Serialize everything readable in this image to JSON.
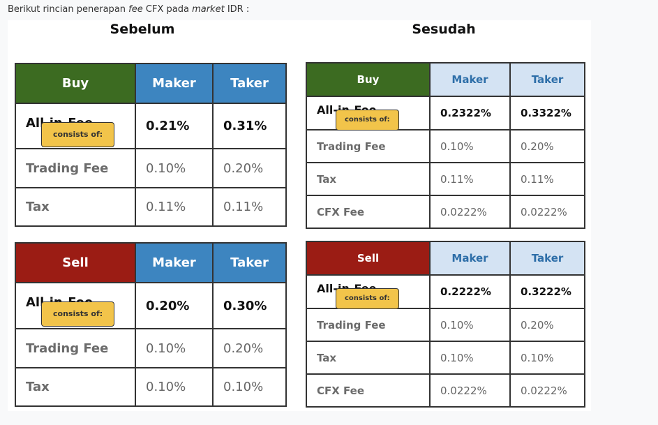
{
  "intro": {
    "text_before_fee": "Berikut rincian penerapan",
    "fee": "fee",
    "text_middle": "CFX pada",
    "market": "market",
    "text_after": "IDR :"
  },
  "before": {
    "heading": "Sebelum",
    "buy": {
      "header": [
        "Buy",
        "Maker",
        "Taker"
      ],
      "all_in_label": "All-in-Fee",
      "badge": "consists of:",
      "all_in_values": [
        "0.21%",
        "0.31%"
      ],
      "rows": [
        {
          "label": "Trading Fee",
          "maker": "0.10%",
          "taker": "0.20%"
        },
        {
          "label": "Tax",
          "maker": "0.11%",
          "taker": "0.11%"
        }
      ]
    },
    "sell": {
      "header": [
        "Sell",
        "Maker",
        "Taker"
      ],
      "all_in_label": "All-in-Fee",
      "badge": "consists of:",
      "all_in_values": [
        "0.20%",
        "0.30%"
      ],
      "rows": [
        {
          "label": "Trading Fee",
          "maker": "0.10%",
          "taker": "0.20%"
        },
        {
          "label": "Tax",
          "maker": "0.10%",
          "taker": "0.10%"
        }
      ]
    }
  },
  "after": {
    "heading": "Sesudah",
    "buy": {
      "header": [
        "Buy",
        "Maker",
        "Taker"
      ],
      "all_in_label": "All-in-Fee",
      "badge": "consists of:",
      "all_in_values": [
        "0.2322%",
        "0.3322%"
      ],
      "rows": [
        {
          "label": "Trading Fee",
          "maker": "0.10%",
          "taker": "0.20%"
        },
        {
          "label": "Tax",
          "maker": "0.11%",
          "taker": "0.11%"
        },
        {
          "label": "CFX Fee",
          "maker": "0.0222%",
          "taker": "0.0222%"
        }
      ]
    },
    "sell": {
      "header": [
        "Sell",
        "Maker",
        "Taker"
      ],
      "all_in_label": "All-in-Fee",
      "badge": "consists of:",
      "all_in_values": [
        "0.2222%",
        "0.3222%"
      ],
      "rows": [
        {
          "label": "Trading Fee",
          "maker": "0.10%",
          "taker": "0.20%"
        },
        {
          "label": "Tax",
          "maker": "0.10%",
          "taker": "0.10%"
        },
        {
          "label": "CFX Fee",
          "maker": "0.0222%",
          "taker": "0.0222%"
        }
      ]
    }
  },
  "colors": {
    "buy_header_old": "#3c6b21",
    "sell_header_old": "#9b1c14",
    "maker_taker_old": "#3d85c0",
    "maker_taker_new": "#d4e3f3",
    "badge": "#f2c44a"
  }
}
